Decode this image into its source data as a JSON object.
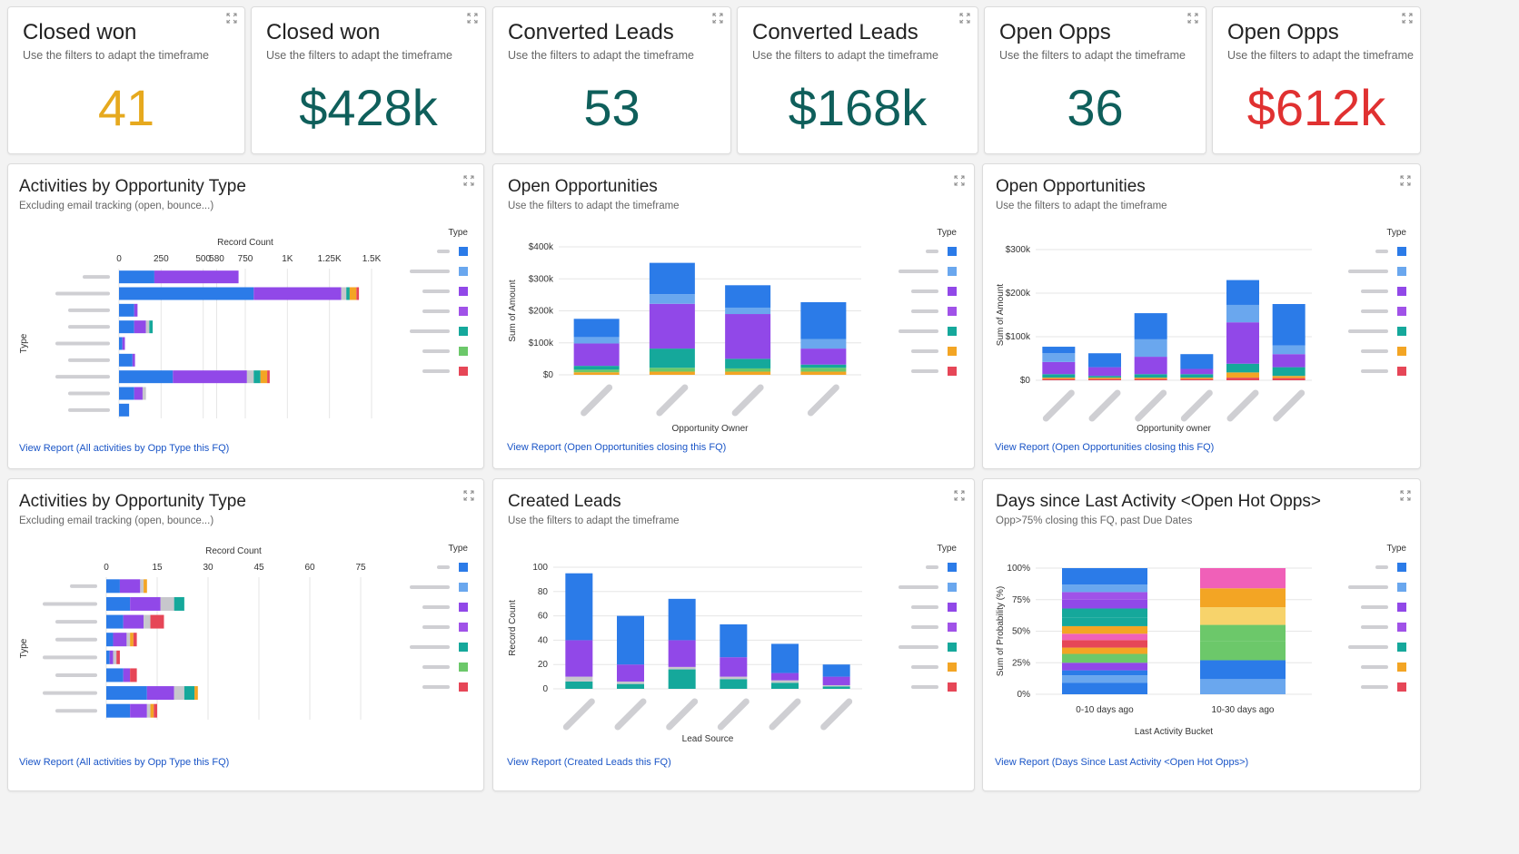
{
  "colors": {
    "blue": "#2b7be8",
    "lightblue": "#6aa7ee",
    "purple": "#9148e8",
    "violet": "#a052e8",
    "teal": "#15a89b",
    "green": "#6cc86a",
    "red": "#e64657",
    "orange": "#f3a524",
    "gray": "#c7c7cc",
    "pink": "#f060b8",
    "yellow": "#f7d36b"
  },
  "kpis": [
    {
      "title": "Closed won",
      "subtitle": "Use the filters to adapt the timeframe",
      "value": "41",
      "color": "#e6a91e"
    },
    {
      "title": "Closed won",
      "subtitle": "Use the filters to adapt the timeframe",
      "value": "$428k",
      "color": "#0f5f5b"
    },
    {
      "title": "Converted Leads",
      "subtitle": "Use the filters to adapt the timeframe",
      "value": "53",
      "color": "#0f5f5b"
    },
    {
      "title": "Converted Leads",
      "subtitle": "Use the filters to adapt the timeframe",
      "value": "$168k",
      "color": "#0f5f5b"
    },
    {
      "title": "Open Opps",
      "subtitle": "Use the filters to adapt the timeframe",
      "value": "36",
      "color": "#0f5f5b"
    },
    {
      "title": "Open Opps",
      "subtitle": "Use the filters to adapt the timeframe",
      "value": "$612k",
      "color": "#e03131"
    }
  ],
  "legend_label": "Type",
  "charts": [
    {
      "title": "Activities by Opportunity Type",
      "subtitle": "Excluding email tracking (open, bounce...)",
      "link": "View Report (All activities by Opp Type this FQ)"
    },
    {
      "title": "Open Opportunities",
      "subtitle": "Use the filters to adapt the timeframe",
      "link": "View Report (Open Opportunities closing this FQ)"
    },
    {
      "title": "Open Opportunities",
      "subtitle": "Use the filters to adapt the timeframe",
      "link": "View Report (Open Opportunities closing this FQ)"
    },
    {
      "title": "Activities by Opportunity Type",
      "subtitle": "Excluding email tracking (open, bounce...)",
      "link": "View Report (All activities by Opp Type this FQ)"
    },
    {
      "title": "Created Leads",
      "subtitle": "Use the filters to adapt the timeframe",
      "link": "View Report (Created Leads this FQ)"
    },
    {
      "title": "Days since Last Activity <Open Hot Opps>",
      "subtitle": "Opp>75% closing this FQ, past Due Dates",
      "link": "View Report (Days Since Last Activity <Open Hot Opps>)"
    }
  ],
  "chart_data": [
    {
      "type": "bar",
      "orientation": "horizontal",
      "stacked": true,
      "xlabel": "Record Count",
      "ylabel": "Type",
      "xlim": [
        0,
        1500
      ],
      "ticks": [
        "0",
        "250",
        "500",
        "580",
        "750",
        "1K",
        "1.25K",
        "1.5K"
      ],
      "tick_values": [
        0,
        250,
        500,
        580,
        750,
        1000,
        1250,
        1500
      ],
      "categories": [
        "",
        "",
        "",
        "",
        "",
        "",
        "",
        "",
        ""
      ],
      "colors": [
        "blue",
        "purple",
        "gray",
        "teal",
        "orange",
        "red"
      ],
      "stacks": [
        [
          210,
          500,
          0,
          0,
          0,
          0
        ],
        [
          800,
          520,
          30,
          20,
          40,
          15
        ],
        [
          90,
          20,
          0,
          0,
          0,
          0
        ],
        [
          90,
          70,
          20,
          20,
          0,
          0
        ],
        [
          20,
          15,
          0,
          0,
          0,
          0
        ],
        [
          80,
          15,
          0,
          0,
          0,
          0
        ],
        [
          320,
          440,
          40,
          40,
          40,
          15
        ],
        [
          90,
          50,
          20,
          0,
          0,
          0
        ],
        [
          60,
          0,
          0,
          0,
          0,
          0
        ]
      ],
      "legend": [
        "blue",
        "lightblue",
        "purple",
        "violet",
        "teal",
        "green",
        "red"
      ]
    },
    {
      "type": "bar",
      "stacked": true,
      "xlabel": "Opportunity Owner",
      "ylabel": "Sum of Amount",
      "ylim": [
        0,
        400000
      ],
      "ticks": [
        "$0",
        "$100k",
        "$200k",
        "$300k",
        "$400k"
      ],
      "tick_values": [
        0,
        100000,
        200000,
        300000,
        400000
      ],
      "categories": [
        "",
        "",
        "",
        ""
      ],
      "colors": [
        "orange",
        "green",
        "teal",
        "purple",
        "lightblue",
        "blue"
      ],
      "stacks": [
        [
          8000,
          8000,
          12000,
          70000,
          20000,
          57000
        ],
        [
          10000,
          12000,
          60000,
          140000,
          30000,
          98000
        ],
        [
          10000,
          10000,
          30000,
          140000,
          20000,
          70000
        ],
        [
          10000,
          12000,
          10000,
          50000,
          30000,
          115000
        ]
      ],
      "legend": [
        "blue",
        "lightblue",
        "purple",
        "violet",
        "teal",
        "orange",
        "red"
      ]
    },
    {
      "type": "bar",
      "stacked": true,
      "xlabel": "Opportunity owner",
      "ylabel": "Sum of Amount",
      "ylim": [
        0,
        300000
      ],
      "ticks": [
        "$0",
        "$100k",
        "$200k",
        "$300k"
      ],
      "tick_values": [
        0,
        100000,
        200000,
        300000
      ],
      "categories": [
        "",
        "",
        "",
        "",
        "",
        ""
      ],
      "colors": [
        "red",
        "orange",
        "teal",
        "purple",
        "lightblue",
        "blue"
      ],
      "stacks": [
        [
          3000,
          3000,
          8000,
          28000,
          20000,
          15000
        ],
        [
          3000,
          3000,
          4000,
          20000,
          0,
          32000
        ],
        [
          3000,
          3000,
          8000,
          40000,
          40000,
          60000
        ],
        [
          3000,
          3000,
          8000,
          12000,
          0,
          34000
        ],
        [
          6000,
          12000,
          20000,
          95000,
          40000,
          57000
        ],
        [
          5000,
          5000,
          20000,
          30000,
          20000,
          95000
        ]
      ],
      "legend": [
        "blue",
        "lightblue",
        "purple",
        "violet",
        "teal",
        "orange",
        "red"
      ]
    },
    {
      "type": "bar",
      "orientation": "horizontal",
      "stacked": true,
      "xlabel": "Record Count",
      "ylabel": "Type",
      "xlim": [
        0,
        75
      ],
      "ticks": [
        "0",
        "15",
        "30",
        "45",
        "60",
        "75"
      ],
      "tick_values": [
        0,
        15,
        30,
        45,
        60,
        75
      ],
      "categories": [
        "",
        "",
        "",
        "",
        "",
        "",
        "",
        ""
      ],
      "colors": [
        "blue",
        "purple",
        "gray",
        "teal",
        "orange",
        "red"
      ],
      "stacks": [
        [
          4,
          6,
          1,
          0,
          1,
          0
        ],
        [
          7,
          9,
          4,
          3,
          0,
          0
        ],
        [
          5,
          6,
          2,
          0,
          0,
          4
        ],
        [
          2,
          4,
          1,
          0,
          1,
          1
        ],
        [
          1,
          1,
          1,
          0,
          0,
          1
        ],
        [
          5,
          2,
          0,
          0,
          0,
          2
        ],
        [
          12,
          8,
          3,
          3,
          1,
          0
        ],
        [
          7,
          5,
          1,
          0,
          1,
          1
        ]
      ],
      "legend": [
        "blue",
        "lightblue",
        "purple",
        "violet",
        "teal",
        "green",
        "red"
      ]
    },
    {
      "type": "bar",
      "stacked": true,
      "xlabel": "Lead Source",
      "ylabel": "Record Count",
      "ylim": [
        0,
        100
      ],
      "ticks": [
        "0",
        "20",
        "40",
        "60",
        "80",
        "100"
      ],
      "tick_values": [
        0,
        20,
        40,
        60,
        80,
        100
      ],
      "categories": [
        "",
        "",
        "",
        "",
        "",
        ""
      ],
      "colors": [
        "teal",
        "gray",
        "purple",
        "blue"
      ],
      "stacks": [
        [
          6,
          4,
          30,
          55
        ],
        [
          4,
          2,
          14,
          40
        ],
        [
          16,
          2,
          22,
          34
        ],
        [
          8,
          2,
          16,
          27
        ],
        [
          5,
          2,
          6,
          24
        ],
        [
          2,
          1,
          7,
          10
        ]
      ],
      "legend": [
        "blue",
        "lightblue",
        "purple",
        "violet",
        "teal",
        "orange",
        "red"
      ]
    },
    {
      "type": "bar",
      "stacked": true,
      "percent": true,
      "xlabel": "Last Activity Bucket",
      "ylabel": "Sum of Probability (%)",
      "ylim": [
        0,
        100
      ],
      "ticks": [
        "0%",
        "25%",
        "50%",
        "75%",
        "100%"
      ],
      "tick_values": [
        0,
        25,
        50,
        75,
        100
      ],
      "categories": [
        "0-10 days ago",
        "10-30 days ago"
      ],
      "stacks": [
        [
          [
            "blue",
            9
          ],
          [
            "lightblue",
            6
          ],
          [
            "blue",
            4
          ],
          [
            "purple",
            6
          ],
          [
            "green",
            7
          ],
          [
            "orange",
            5
          ],
          [
            "red",
            6
          ],
          [
            "pink",
            5
          ],
          [
            "orange",
            6
          ],
          [
            "teal",
            7
          ],
          [
            "teal",
            7
          ],
          [
            "purple",
            7
          ],
          [
            "violet",
            6
          ],
          [
            "lightblue",
            6
          ],
          [
            "blue",
            13
          ]
        ],
        [
          [
            "lightblue",
            12
          ],
          [
            "blue",
            15
          ],
          [
            "green",
            15
          ],
          [
            "green",
            13
          ],
          [
            "yellow",
            14
          ],
          [
            "orange",
            15
          ],
          [
            "pink",
            16
          ]
        ]
      ],
      "legend": [
        "blue",
        "lightblue",
        "purple",
        "violet",
        "teal",
        "orange",
        "red"
      ]
    }
  ]
}
